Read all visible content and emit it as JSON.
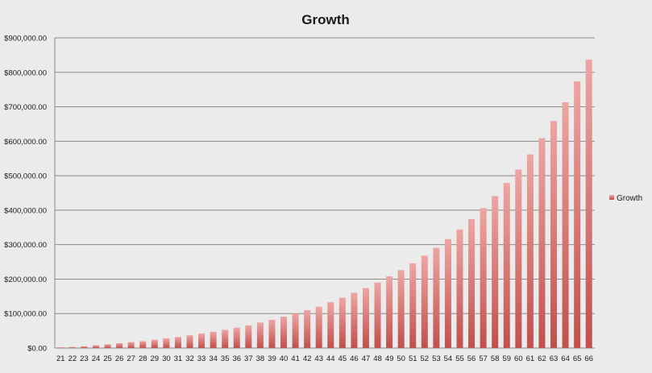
{
  "colors": {
    "background": "#ebebeb",
    "bar_top": "#eda5a3",
    "bar_bottom": "#c0504d",
    "grid": "#8a8a8a",
    "text": "#1a1a1a"
  },
  "chart_data": {
    "type": "bar",
    "title": "Growth",
    "xlabel": "",
    "ylabel": "",
    "ylim": [
      0,
      900000
    ],
    "yticks": [
      0,
      100000,
      200000,
      300000,
      400000,
      500000,
      600000,
      700000,
      800000,
      900000
    ],
    "ytick_labels": [
      "$0.00",
      "$100,000.00",
      "$200,000.00",
      "$300,000.00",
      "$400,000.00",
      "$500,000.00",
      "$600,000.00",
      "$700,000.00",
      "$800,000.00",
      "$900,000.00"
    ],
    "grid": true,
    "legend": {
      "position": "right",
      "entries": [
        "Growth"
      ]
    },
    "categories": [
      "21",
      "22",
      "23",
      "24",
      "25",
      "26",
      "27",
      "28",
      "29",
      "30",
      "31",
      "32",
      "33",
      "34",
      "35",
      "36",
      "37",
      "38",
      "39",
      "40",
      "41",
      "42",
      "43",
      "44",
      "45",
      "46",
      "47",
      "48",
      "49",
      "50",
      "51",
      "52",
      "53",
      "54",
      "55",
      "56",
      "57",
      "58",
      "59",
      "60",
      "61",
      "62",
      "63",
      "64",
      "65",
      "66"
    ],
    "series": [
      {
        "name": "Growth",
        "values": [
          2000,
          3000,
          5000,
          8000,
          11000,
          14000,
          17000,
          20000,
          24000,
          28000,
          32000,
          37000,
          42000,
          47000,
          53000,
          59000,
          66000,
          74000,
          82000,
          91000,
          100000,
          110000,
          120000,
          133000,
          146000,
          160000,
          174000,
          190000,
          208000,
          226000,
          246000,
          268000,
          291000,
          316000,
          344000,
          374000,
          406000,
          441000,
          479000,
          518000,
          562000,
          609000,
          659000,
          713000,
          774000,
          837000
        ]
      }
    ]
  }
}
